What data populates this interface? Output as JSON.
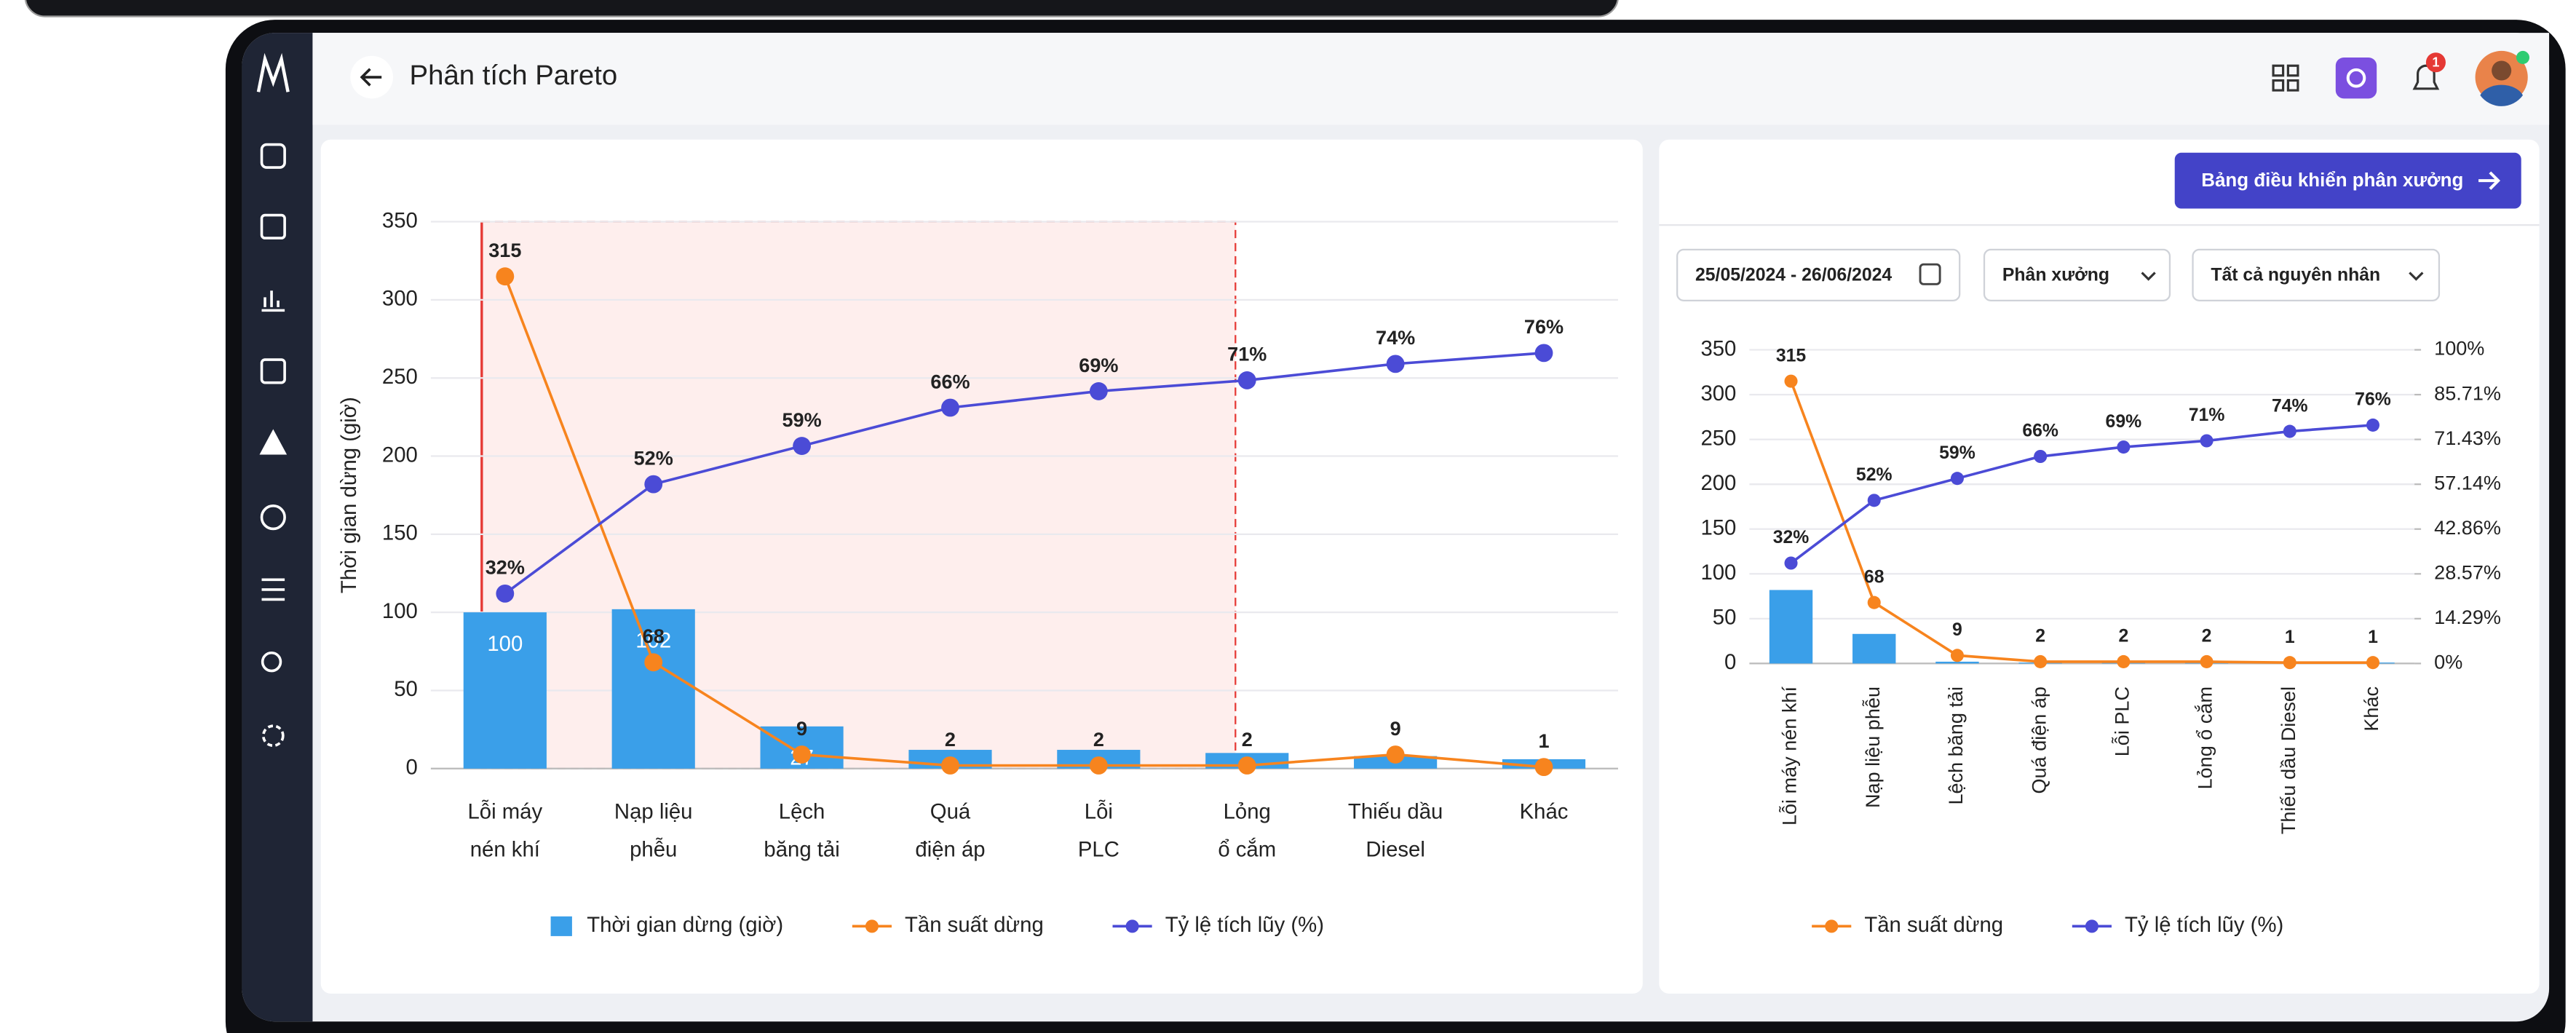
{
  "header": {
    "title": "Phân tích Pareto",
    "notification_count": 1
  },
  "toolbar": {
    "button": "Bảng điều khiển phân xưởng",
    "date_range": "25/05/2024 - 26/06/2024",
    "workshop_filter": "Phân xưởng",
    "cause_filter": "Tất cả nguyên nhân"
  },
  "chart_data": [
    {
      "type": "bar",
      "ylabel": "Thời gian dừng (giờ)",
      "categories": [
        [
          "Lỗi máy",
          "nén khí"
        ],
        [
          "Nạp liệu",
          "phễu"
        ],
        [
          "Lệch",
          "băng tải"
        ],
        [
          "Quá",
          "điện áp"
        ],
        [
          "Lỗi",
          "PLC"
        ],
        [
          "Lỏng",
          "ổ cắm"
        ],
        [
          "Thiếu dầu",
          "Diesel"
        ],
        [
          "Khác"
        ]
      ],
      "series": [
        {
          "name": "Thời gian dừng (giờ)",
          "type": "bar",
          "color": "#3a9fe9",
          "values": [
            100,
            102,
            27,
            12,
            12,
            10,
            8,
            6
          ],
          "value_labels": [
            "100",
            "102",
            "27",
            null,
            null,
            null,
            null,
            null
          ]
        },
        {
          "name": "Tần suất dừng",
          "type": "line",
          "color": "#f7841e",
          "values": [
            315,
            68,
            9,
            2,
            2,
            2,
            9,
            1
          ]
        },
        {
          "name": "Tỷ lệ tích lũy (%)",
          "type": "line",
          "axis": "y2",
          "color": "#4b4bd6",
          "values": [
            32,
            52,
            59,
            66,
            69,
            71,
            74,
            76
          ],
          "value_labels": [
            "32%",
            "52%",
            "59%",
            "66%",
            "69%",
            "71%",
            "74%",
            "76%"
          ]
        }
      ],
      "ylim": [
        0,
        350
      ],
      "yticks": [
        0,
        50,
        100,
        150,
        200,
        250,
        300,
        350
      ],
      "y2lim": [
        0,
        100
      ],
      "grid": true,
      "legend": "bottom"
    },
    {
      "type": "bar",
      "categories": [
        "Lỗi máy nén khí",
        "Nạp liệu phễu",
        "Lệch băng tải",
        "Quá điện áp",
        "Lỗi PLC",
        "Lỏng ổ cắm",
        "Thiếu dầu Diesel",
        "Khác"
      ],
      "series": [
        {
          "type": "bar",
          "color": "#3a9fe9",
          "values": [
            82,
            33,
            2,
            1,
            1,
            1,
            1,
            1
          ]
        },
        {
          "name": "Tần suất dừng",
          "type": "line",
          "color": "#f7841e",
          "values": [
            315,
            68,
            9,
            2,
            2,
            2,
            1,
            1
          ]
        },
        {
          "name": "Tỷ lệ tích lũy (%)",
          "type": "line",
          "axis": "y2",
          "color": "#4b4bd6",
          "values": [
            32,
            52,
            59,
            66,
            69,
            71,
            74,
            76
          ],
          "value_labels": [
            "32%",
            "52%",
            "59%",
            "66%",
            "69%",
            "71%",
            "74%",
            "76%"
          ]
        }
      ],
      "ylim": [
        0,
        350
      ],
      "yticks": [
        0,
        50,
        100,
        150,
        200,
        250,
        300,
        350
      ],
      "y2lim": [
        0,
        100
      ],
      "y2ticks": [
        {
          "value": 0,
          "label": "0%"
        },
        {
          "value": 14.29,
          "label": "14.29%"
        },
        {
          "value": 28.57,
          "label": "28.57%"
        },
        {
          "value": 42.86,
          "label": "42.86%"
        },
        {
          "value": 57.14,
          "label": "57.14%"
        },
        {
          "value": 71.43,
          "label": "71.43%"
        },
        {
          "value": 85.71,
          "label": "85.71%"
        },
        {
          "value": 100,
          "label": "100%"
        }
      ],
      "grid": true,
      "legend": "bottom"
    }
  ]
}
